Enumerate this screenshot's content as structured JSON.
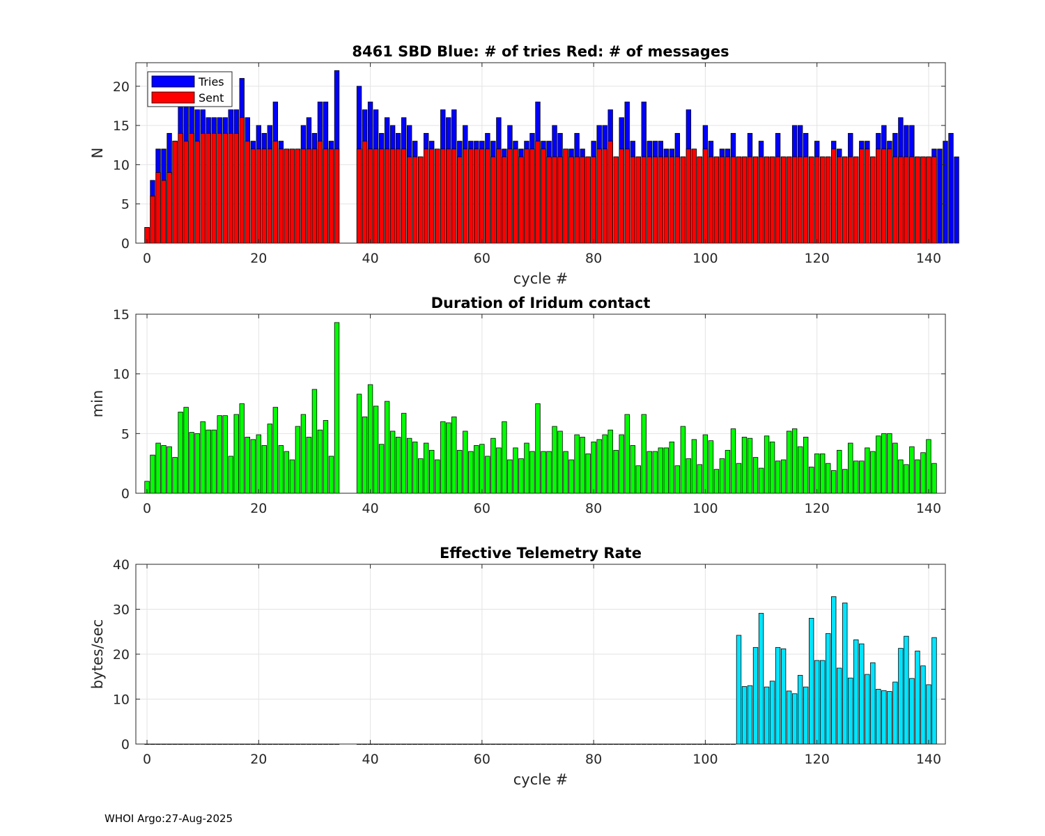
{
  "footer": "WHOI Argo:27-Aug-2025",
  "chart_data": [
    {
      "type": "bar",
      "title": "8461 SBD  Blue: # of tries   Red: # of messages",
      "xlabel": "cycle #",
      "ylabel": "N",
      "xlim": [
        -2,
        143
      ],
      "ylim": [
        0,
        23
      ],
      "xticks": [
        0,
        20,
        40,
        60,
        80,
        100,
        120,
        140
      ],
      "yticks": [
        0,
        5,
        10,
        15,
        20
      ],
      "grid": true,
      "legend": {
        "position": "top-left",
        "entries": [
          "Tries",
          "Sent"
        ]
      },
      "series": [
        {
          "name": "Tries",
          "color": "#0000ff",
          "x_start": 0,
          "values": [
            2,
            8,
            12,
            12,
            14,
            13,
            18,
            18,
            18,
            17,
            17,
            16,
            16,
            16,
            16,
            17,
            17,
            21,
            16,
            13,
            15,
            14,
            15,
            18,
            13,
            12,
            12,
            12,
            15,
            16,
            14,
            18,
            18,
            13,
            22,
            null,
            null,
            null,
            20,
            17,
            18,
            17,
            14,
            16,
            15,
            14,
            16,
            15,
            13,
            11,
            14,
            13,
            12,
            17,
            16,
            17,
            13,
            15,
            13,
            13,
            13,
            14,
            13,
            16,
            12,
            15,
            13,
            12,
            13,
            14,
            18,
            13,
            13,
            15,
            14,
            12,
            12,
            14,
            12,
            11,
            13,
            15,
            15,
            17,
            11,
            16,
            18,
            13,
            11,
            18,
            13,
            13,
            13,
            12,
            12,
            14,
            11,
            17,
            12,
            11,
            15,
            13,
            11,
            12,
            12,
            14,
            11,
            11,
            14,
            11,
            13,
            11,
            11,
            14,
            11,
            11,
            15,
            15,
            14,
            11,
            13,
            11,
            11,
            13,
            12,
            11,
            14,
            11,
            13,
            13,
            11,
            14,
            15,
            13,
            14,
            16,
            15,
            15,
            11,
            11,
            11,
            12,
            12,
            13,
            14,
            11
          ]
        },
        {
          "name": "Sent",
          "color": "#ff0000",
          "x_start": 0,
          "values": [
            2,
            6,
            9,
            8,
            9,
            13,
            14,
            13,
            14,
            13,
            14,
            14,
            14,
            14,
            14,
            14,
            14,
            16,
            13,
            12,
            12,
            12,
            12,
            13,
            12,
            12,
            12,
            12,
            12,
            12,
            12,
            13,
            12,
            12,
            12,
            null,
            null,
            null,
            12,
            13,
            12,
            12,
            12,
            12,
            12,
            12,
            12,
            11,
            11,
            11,
            12,
            12,
            12,
            12,
            12,
            12,
            11,
            12,
            12,
            12,
            12,
            12,
            11,
            12,
            11,
            12,
            12,
            11,
            12,
            12,
            13,
            12,
            11,
            11,
            11,
            12,
            11,
            11,
            11,
            11,
            11,
            12,
            12,
            13,
            11,
            12,
            12,
            11,
            11,
            11,
            11,
            11,
            11,
            11,
            11,
            11,
            11,
            12,
            12,
            11,
            12,
            11,
            11,
            11,
            11,
            11,
            11,
            11,
            11,
            11,
            11,
            11,
            11,
            11,
            11,
            11,
            11,
            11,
            11,
            11,
            11,
            11,
            11,
            12,
            11,
            11,
            11,
            11,
            12,
            12,
            11,
            12,
            12,
            12,
            11,
            11,
            11,
            11,
            11,
            11,
            11,
            11
          ]
        }
      ]
    },
    {
      "type": "bar",
      "title": "Duration of Iridum contact",
      "xlabel": "",
      "ylabel": "min",
      "xlim": [
        -2,
        143
      ],
      "ylim": [
        0,
        15
      ],
      "xticks": [
        0,
        20,
        40,
        60,
        80,
        100,
        120,
        140
      ],
      "yticks": [
        0,
        5,
        10,
        15
      ],
      "grid": true,
      "series": [
        {
          "name": "Duration",
          "color": "#00ff00",
          "x_start": 0,
          "values": [
            1,
            3.2,
            4.2,
            4,
            3.9,
            3,
            6.8,
            7.2,
            5.1,
            5,
            6,
            5.3,
            5.3,
            6.5,
            6.5,
            3.1,
            6.6,
            7.5,
            4.7,
            4.5,
            4.9,
            4,
            5.8,
            7.2,
            4,
            3.5,
            2.8,
            5.6,
            6.6,
            4.7,
            8.7,
            5.3,
            6.1,
            3.1,
            14.3,
            null,
            null,
            null,
            8.3,
            6.4,
            9.1,
            7.3,
            4.1,
            7.7,
            5.2,
            4.7,
            6.7,
            4.6,
            4.3,
            2.9,
            4.2,
            3.6,
            2.8,
            6,
            5.9,
            6.4,
            3.6,
            5.2,
            3.5,
            4,
            4.1,
            3.1,
            4.6,
            3.8,
            6,
            2.8,
            3.8,
            2.9,
            4.2,
            3.5,
            7.5,
            3.5,
            3.5,
            5.6,
            5.2,
            3.5,
            2.8,
            4.9,
            4.7,
            3.3,
            4.3,
            4.5,
            4.9,
            5.3,
            3.6,
            4.9,
            6.6,
            4,
            2.3,
            6.6,
            3.5,
            3.5,
            3.8,
            3.8,
            4.3,
            2.3,
            5.6,
            2.9,
            4.5,
            2.4,
            4.9,
            4.4,
            2,
            2.9,
            3.6,
            5.4,
            2.5,
            4.7,
            4.6,
            3,
            2.1,
            4.8,
            4.3,
            2.7,
            2.8,
            5.2,
            5.4,
            3.9,
            4.7,
            2.2,
            3.3,
            3.3,
            2.5,
            1.9,
            3.6,
            2,
            4.2,
            2.7,
            2.7,
            3.8,
            3.5,
            4.8,
            5,
            5,
            4.2,
            2.8,
            2.4,
            3.9,
            2.8,
            3.4,
            4.5,
            2.5
          ]
        }
      ]
    },
    {
      "type": "bar",
      "title": "Effective Telemetry Rate",
      "xlabel": "cycle #",
      "ylabel": "bytes/sec",
      "xlim": [
        -2,
        143
      ],
      "ylim": [
        0,
        40
      ],
      "xticks": [
        0,
        20,
        40,
        60,
        80,
        100,
        120,
        140
      ],
      "yticks": [
        0,
        10,
        20,
        30,
        40
      ],
      "grid": true,
      "series": [
        {
          "name": "Rate",
          "color": "#00e5ff",
          "x_start": 0,
          "values": [
            0,
            0,
            0,
            0,
            0,
            0,
            0,
            0,
            0,
            0,
            0,
            0,
            0,
            0,
            0,
            0,
            0,
            0,
            0,
            0,
            0,
            0,
            0,
            0,
            0,
            0,
            0,
            0,
            0,
            0,
            0,
            0,
            0,
            0,
            0,
            null,
            null,
            null,
            0,
            0,
            0,
            0,
            0,
            0,
            0,
            0,
            0,
            0,
            0,
            0,
            0,
            0,
            0,
            0,
            0,
            0,
            0,
            0,
            0,
            0,
            0,
            0,
            0,
            0,
            0,
            0,
            0,
            0,
            0,
            0,
            0,
            0,
            0,
            0,
            0,
            0,
            0,
            0,
            0,
            0,
            0,
            0,
            0,
            0,
            0,
            0,
            0,
            0,
            0,
            0,
            0,
            0,
            0,
            0,
            0,
            0,
            0,
            0,
            0,
            0,
            0,
            0,
            0,
            0,
            0,
            0,
            24.2,
            12.8,
            13,
            21.5,
            29.1,
            12.7,
            14,
            21.5,
            21.2,
            11.8,
            11.2,
            15.3,
            12.7,
            28,
            18.6,
            18.6,
            24.6,
            32.8,
            16.9,
            31.4,
            14.7,
            23.2,
            22.3,
            15.5,
            18.1,
            12.2,
            11.9,
            11.7,
            13.8,
            21.3,
            24,
            14.6,
            20.7,
            17.4,
            13.2,
            23.7
          ]
        }
      ]
    }
  ]
}
